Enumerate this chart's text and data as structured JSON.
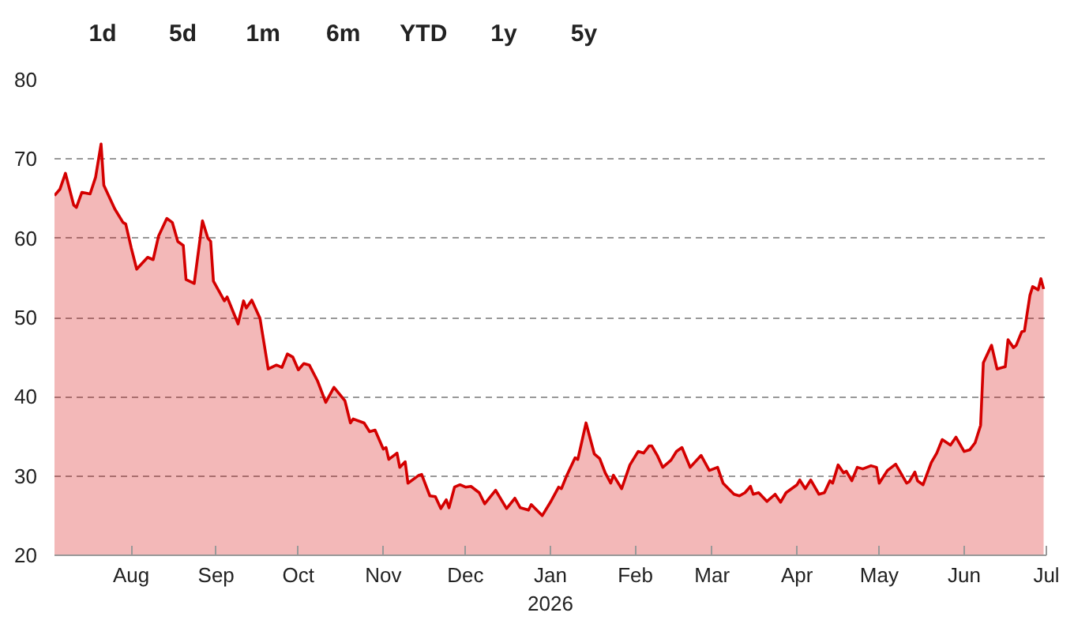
{
  "chart_data": {
    "type": "area",
    "annotations": [
      "1d",
      "5d",
      "1m",
      "6m",
      "YTD",
      "1y",
      "5y"
    ],
    "x": [
      "2025-07-04",
      "2025-07-06",
      "2025-07-08",
      "2025-07-11",
      "2025-07-12",
      "2025-07-14",
      "2025-07-17",
      "2025-07-19",
      "2025-07-21",
      "2025-07-22",
      "2025-07-26",
      "2025-07-29",
      "2025-07-30",
      "2025-08-01",
      "2025-08-03",
      "2025-08-07",
      "2025-08-09",
      "2025-08-11",
      "2025-08-14",
      "2025-08-16",
      "2025-08-18",
      "2025-08-20",
      "2025-08-21",
      "2025-08-24",
      "2025-08-27",
      "2025-08-29",
      "2025-08-30",
      "2025-08-31",
      "2025-09-04",
      "2025-09-05",
      "2025-09-07",
      "2025-09-09",
      "2025-09-11",
      "2025-09-12",
      "2025-09-14",
      "2025-09-17",
      "2025-09-20",
      "2025-09-23",
      "2025-09-25",
      "2025-09-27",
      "2025-09-29",
      "2025-10-01",
      "2025-10-03",
      "2025-10-05",
      "2025-10-08",
      "2025-10-11",
      "2025-10-14",
      "2025-10-18",
      "2025-10-20",
      "2025-10-21",
      "2025-10-25",
      "2025-10-27",
      "2025-10-29",
      "2025-11-01",
      "2025-11-02",
      "2025-11-03",
      "2025-11-06",
      "2025-11-07",
      "2025-11-09",
      "2025-11-10",
      "2025-11-14",
      "2025-11-15",
      "2025-11-18",
      "2025-11-20",
      "2025-11-22",
      "2025-11-24",
      "2025-11-25",
      "2025-11-27",
      "2025-11-29",
      "2025-12-01",
      "2025-12-03",
      "2025-12-06",
      "2025-12-08",
      "2025-12-12",
      "2025-12-16",
      "2025-12-19",
      "2025-12-21",
      "2025-12-24",
      "2025-12-25",
      "2025-12-27",
      "2025-12-29",
      "2026-01-01",
      "2026-01-04",
      "2026-01-05",
      "2026-01-07",
      "2026-01-10",
      "2026-01-11",
      "2026-01-14",
      "2026-01-17",
      "2026-01-19",
      "2026-01-21",
      "2026-01-23",
      "2026-01-24",
      "2026-01-27",
      "2026-01-30",
      "2026-02-02",
      "2026-02-04",
      "2026-02-06",
      "2026-02-07",
      "2026-02-09",
      "2026-02-11",
      "2026-02-14",
      "2026-02-16",
      "2026-02-18",
      "2026-02-21",
      "2026-02-25",
      "2026-02-28",
      "2026-03-03",
      "2026-03-05",
      "2026-03-09",
      "2026-03-11",
      "2026-03-13",
      "2026-03-15",
      "2026-03-16",
      "2026-03-18",
      "2026-03-21",
      "2026-03-24",
      "2026-03-26",
      "2026-03-28",
      "2026-04-01",
      "2026-04-02",
      "2026-04-04",
      "2026-04-06",
      "2026-04-09",
      "2026-04-11",
      "2026-04-13",
      "2026-04-14",
      "2026-04-16",
      "2026-04-18",
      "2026-04-19",
      "2026-04-21",
      "2026-04-23",
      "2026-04-25",
      "2026-04-28",
      "2026-04-30",
      "2026-05-01",
      "2026-05-04",
      "2026-05-07",
      "2026-05-11",
      "2026-05-12",
      "2026-05-14",
      "2026-05-15",
      "2026-05-17",
      "2026-05-20",
      "2026-05-22",
      "2026-05-24",
      "2026-05-27",
      "2026-05-29",
      "2026-06-01",
      "2026-06-03",
      "2026-06-05",
      "2026-06-07",
      "2026-06-08",
      "2026-06-11",
      "2026-06-13",
      "2026-06-16",
      "2026-06-17",
      "2026-06-19",
      "2026-06-20",
      "2026-06-22",
      "2026-06-23",
      "2026-06-25",
      "2026-06-26",
      "2026-06-28",
      "2026-06-29",
      "2026-06-30"
    ],
    "series": [
      {
        "color": "#d40000",
        "values": [
          65.4,
          66.2,
          68.2,
          64.2,
          63.9,
          65.8,
          65.6,
          67.7,
          71.9,
          66.7,
          63.7,
          62.0,
          61.8,
          58.8,
          56.1,
          57.6,
          57.3,
          60.3,
          62.5,
          62.0,
          59.6,
          59.1,
          54.8,
          54.3,
          62.2,
          60.0,
          59.6,
          54.6,
          52.1,
          52.6,
          50.9,
          49.2,
          52.1,
          51.2,
          52.2,
          49.9,
          43.5,
          44.0,
          43.7,
          45.4,
          45.0,
          43.4,
          44.2,
          44.0,
          42.0,
          39.3,
          41.2,
          39.5,
          36.7,
          37.2,
          36.7,
          35.6,
          35.8,
          33.4,
          33.6,
          32.1,
          32.9,
          31.1,
          31.8,
          29.1,
          30.1,
          30.2,
          27.5,
          27.4,
          25.9,
          27.0,
          26.0,
          28.6,
          28.9,
          28.6,
          28.7,
          27.9,
          26.5,
          28.2,
          25.9,
          27.2,
          26.0,
          25.7,
          26.4,
          25.7,
          25.0,
          26.7,
          28.6,
          28.4,
          30.1,
          32.3,
          32.1,
          36.7,
          32.8,
          32.2,
          30.4,
          29.1,
          30.1,
          28.4,
          31.4,
          33.1,
          32.9,
          33.8,
          33.8,
          32.6,
          31.1,
          32.0,
          33.1,
          33.6,
          31.1,
          32.6,
          30.7,
          31.1,
          29.1,
          27.7,
          27.5,
          27.9,
          28.7,
          27.7,
          27.9,
          26.8,
          27.7,
          26.7,
          27.9,
          28.9,
          29.5,
          28.4,
          29.5,
          27.7,
          27.9,
          29.4,
          29.1,
          31.4,
          30.4,
          30.6,
          29.4,
          31.1,
          30.9,
          31.3,
          31.1,
          29.1,
          30.7,
          31.5,
          29.1,
          29.3,
          30.5,
          29.4,
          28.9,
          31.7,
          32.9,
          34.6,
          33.9,
          34.9,
          33.1,
          33.3,
          34.2,
          36.4,
          44.3,
          46.5,
          43.5,
          43.8,
          47.2,
          46.2,
          46.5,
          48.2,
          48.3,
          52.8,
          53.9,
          53.5,
          54.9,
          53.6
        ]
      }
    ],
    "xlim": [
      "2025-07-04",
      "2026-07-01"
    ],
    "xticks": [
      {
        "value": "2025-08-01",
        "label": "Aug"
      },
      {
        "value": "2025-09-01",
        "label": "Sep"
      },
      {
        "value": "2025-10-01",
        "label": "Oct"
      },
      {
        "value": "2025-11-01",
        "label": "Nov"
      },
      {
        "value": "2025-12-01",
        "label": "Dec"
      },
      {
        "value": "2026-01-01",
        "label": "Jan\n2026"
      },
      {
        "value": "2026-02-01",
        "label": "Feb"
      },
      {
        "value": "2026-03-01",
        "label": "Mar"
      },
      {
        "value": "2026-04-01",
        "label": "Apr"
      },
      {
        "value": "2026-05-01",
        "label": "May"
      },
      {
        "value": "2026-06-01",
        "label": "Jun"
      },
      {
        "value": "2026-07-01",
        "label": "Jul"
      }
    ],
    "ylim": [
      20,
      80
    ],
    "yticks": [
      20,
      30,
      40,
      50,
      60,
      70,
      80
    ],
    "grid": "y",
    "line_style": "solid"
  }
}
